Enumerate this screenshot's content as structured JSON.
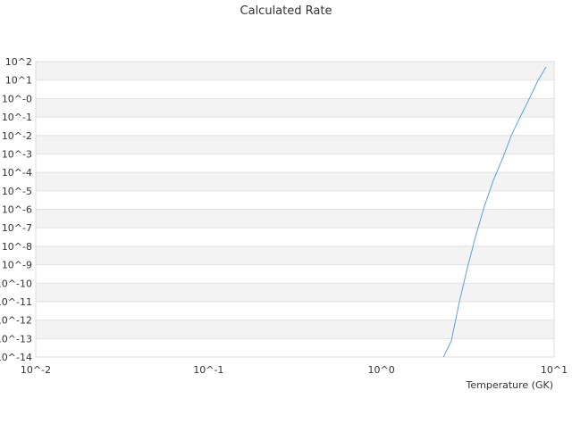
{
  "chart_data": {
    "type": "line",
    "title": "Calculated Rate",
    "xlabel": "Temperature (GK)",
    "ylabel": "",
    "xscale": "log",
    "yscale": "log",
    "xlim": [
      0.01,
      10
    ],
    "ylim": [
      1e-14,
      100
    ],
    "grid": true,
    "xticks": [
      "10^-2",
      "10^-1",
      "10^0",
      "10^1"
    ],
    "yticks": [
      "10^2",
      "10^1",
      "10^-0",
      "10^-1",
      "10^-2",
      "10^-3",
      "10^-4",
      "10^-5",
      "10^-6",
      "10^-7",
      "10^-8",
      "10^-9",
      "10^-10",
      "10^-11",
      "10^-12",
      "10^-13",
      "10^-14"
    ],
    "series": [
      {
        "color": "#5aa0e8",
        "x": [
          2.29,
          2.54,
          2.83,
          3.15,
          3.51,
          3.95,
          4.45,
          5.07,
          5.65,
          6.29,
          7.08,
          7.98,
          8.98
        ],
        "y": [
          1e-14,
          7.4e-14,
          1e-11,
          6.9e-10,
          3.4e-08,
          1.5e-06,
          3.7e-05,
          0.00068,
          0.0098,
          0.081,
          0.74,
          7.8,
          51
        ]
      }
    ]
  }
}
